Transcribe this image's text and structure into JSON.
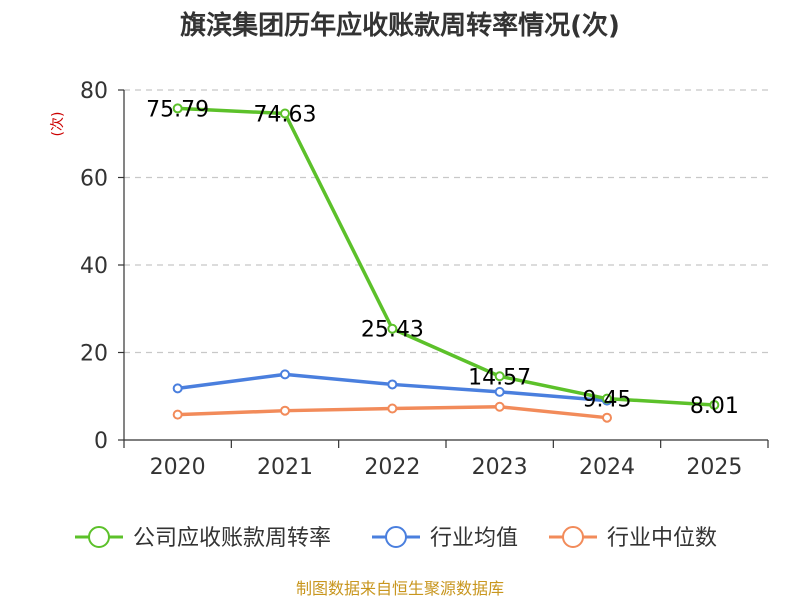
{
  "chart_data": {
    "type": "line",
    "title": "旗滨集团历年应收账款周转率情况(次)",
    "ylabel": "(次)",
    "xlabel": "",
    "categories": [
      "2020",
      "2021",
      "2022",
      "2023",
      "2024",
      "2025"
    ],
    "ylim": [
      0,
      80
    ],
    "yticks": [
      0,
      20,
      40,
      60,
      80
    ],
    "grid": true,
    "legend_position": "bottom",
    "series": [
      {
        "name": "公司应收账款周转率",
        "color": "#5cc12a",
        "values": [
          75.79,
          74.63,
          25.43,
          14.57,
          9.45,
          8.01
        ],
        "labels": [
          "75.79",
          "74.63",
          "25.43",
          "14.57",
          "9.45",
          "8.01"
        ]
      },
      {
        "name": "行业均值",
        "color": "#4a7fde",
        "values": [
          11.8,
          15.0,
          12.7,
          11.0,
          9.0,
          null
        ]
      },
      {
        "name": "行业中位数",
        "color": "#f28b5a",
        "values": [
          5.8,
          6.7,
          7.2,
          7.6,
          5.1,
          null
        ]
      }
    ],
    "source": "制图数据来自恒生聚源数据库",
    "ylabel_color": "#cc0000",
    "source_color": "#c8961e"
  }
}
